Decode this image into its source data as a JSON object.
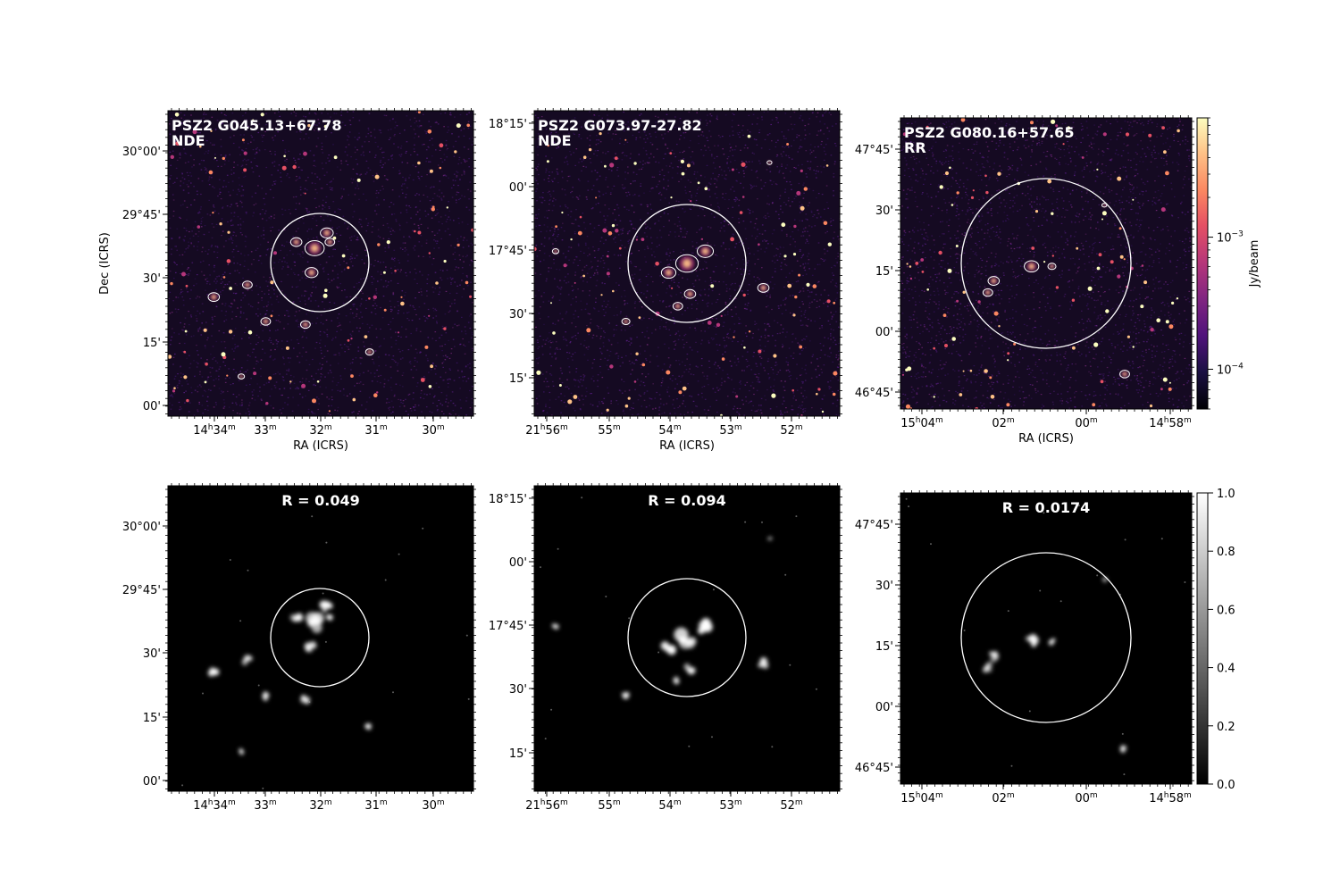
{
  "figure": {
    "colorbar_top": {
      "label": "Jy/beam",
      "scale": "log",
      "colormap": "magma",
      "range": [
        5e-05,
        0.008
      ],
      "ticks": [
        {
          "value": 0.001,
          "mantissa": "10",
          "exp": "−3"
        },
        {
          "value": 0.0001,
          "mantissa": "10",
          "exp": "−4"
        }
      ]
    },
    "colorbar_bottom": {
      "colormap": "gray",
      "range": [
        0,
        1
      ],
      "ticks": [
        "0.0",
        "0.2",
        "0.4",
        "0.6",
        "0.8",
        "1.0"
      ]
    }
  },
  "chart_data": [
    {
      "type": "heatmap",
      "name": "PSZ2 G045.13+67.78 NDE radio image",
      "title_lines": [
        "PSZ2 G045.13+67.78",
        "NDE"
      ],
      "xlabel": "RA (ICRS)",
      "ylabel": "Dec (ICRS)",
      "xticks": [
        {
          "h": "14",
          "m": "34"
        },
        {
          "m": "33"
        },
        {
          "m": "32"
        },
        {
          "m": "31"
        },
        {
          "m": "30"
        }
      ],
      "yticks": [
        "30°00'",
        "29°45'",
        "30'",
        "15'",
        "00'"
      ],
      "contours": true,
      "circle": true
    },
    {
      "type": "heatmap",
      "name": "PSZ2 G073.97-27.82 NDE radio image",
      "title_lines": [
        "PSZ2 G073.97-27.82",
        "NDE"
      ],
      "xlabel": "RA (ICRS)",
      "ylabel": "",
      "xticks": [
        {
          "h": "21",
          "m": "56"
        },
        {
          "m": "55"
        },
        {
          "m": "54"
        },
        {
          "m": "53"
        },
        {
          "m": "52"
        }
      ],
      "yticks": [
        "18°15'",
        "00'",
        "17°45'",
        "30'",
        "15'"
      ],
      "contours": true,
      "circle": true
    },
    {
      "type": "heatmap",
      "name": "PSZ2 G080.16+57.65 RR radio image",
      "title_lines": [
        "PSZ2 G080.16+57.65",
        "RR"
      ],
      "xlabel": "RA (ICRS)",
      "ylabel": "",
      "xticks": [
        {
          "h": "15",
          "m": "04"
        },
        {
          "m": "02"
        },
        {
          "m": "00"
        },
        {
          "h": "14",
          "m": "58"
        }
      ],
      "yticks": [
        "47°45'",
        "30'",
        "15'",
        "00'",
        "46°45'"
      ],
      "contours": true,
      "circle": true
    },
    {
      "type": "heatmap",
      "name": "PSZ2 G045.13+67.78 probability map",
      "title_lines": [
        "R = 0.049"
      ],
      "xticks": [
        {
          "h": "14",
          "m": "34"
        },
        {
          "m": "33"
        },
        {
          "m": "32"
        },
        {
          "m": "31"
        },
        {
          "m": "30"
        }
      ],
      "yticks": [
        "30°00'",
        "29°45'",
        "30'",
        "15'",
        "00'"
      ],
      "circle": true
    },
    {
      "type": "heatmap",
      "name": "PSZ2 G073.97-27.82 probability map",
      "title_lines": [
        "R = 0.094"
      ],
      "xticks": [
        {
          "h": "21",
          "m": "56"
        },
        {
          "m": "55"
        },
        {
          "m": "54"
        },
        {
          "m": "53"
        },
        {
          "m": "52"
        }
      ],
      "yticks": [
        "18°15'",
        "00'",
        "17°45'",
        "30'",
        "15'"
      ],
      "circle": true
    },
    {
      "type": "heatmap",
      "name": "PSZ2 G080.16+57.65 probability map",
      "title_lines": [
        "R = 0.0174"
      ],
      "xticks": [
        {
          "h": "15",
          "m": "04"
        },
        {
          "m": "02"
        },
        {
          "m": "00"
        },
        {
          "h": "14",
          "m": "58"
        }
      ],
      "yticks": [
        "47°45'",
        "30'",
        "15'",
        "00'",
        "46°45'"
      ],
      "circle": true
    }
  ]
}
